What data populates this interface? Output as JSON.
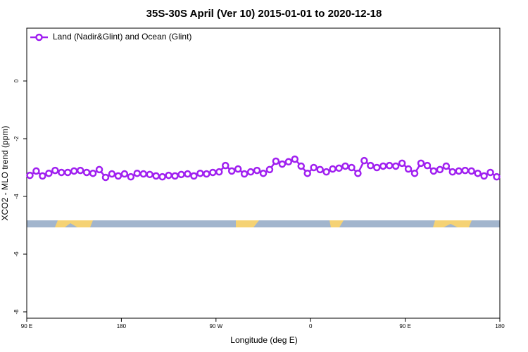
{
  "chart_data": {
    "type": "line",
    "title": "35S-30S April (Ver 10)   2015-01-01 to 2020-12-18",
    "x_label": "Longitude (deg E)",
    "y_label": "XCO2 - MLO trend (ppm)",
    "legend_position": "upper left",
    "xlim": [
      90,
      540
    ],
    "xticks": [
      {
        "value": 90,
        "label": "90 E"
      },
      180,
      {
        "value": 270,
        "label": "90 W"
      },
      {
        "value": 360,
        "label": "0"
      },
      {
        "value": 450,
        "label": "90 E"
      },
      {
        "value": 540,
        "label": "180"
      }
    ],
    "ylim": [
      -8.22,
      1.83
    ],
    "yticks": [
      0,
      -2,
      -4,
      -6,
      -8
    ],
    "series": [
      {
        "name": "Land (Nadir&Glint) and Ocean (Glint)",
        "color": "#a020f0",
        "x": [
          93,
          99,
          105,
          111,
          117,
          123,
          129,
          135,
          141,
          147,
          153,
          159,
          165,
          171,
          177,
          183,
          189,
          195,
          201,
          207,
          213,
          219,
          225,
          231,
          237,
          243,
          249,
          255,
          261,
          267,
          273,
          279,
          285,
          291,
          297,
          303,
          309,
          315,
          321,
          327,
          333,
          339,
          345,
          351,
          357,
          363,
          369,
          375,
          381,
          387,
          393,
          399,
          405,
          411,
          417,
          423,
          429,
          435,
          441,
          447,
          453,
          459,
          465,
          471,
          477,
          483,
          489,
          495,
          501,
          507,
          513,
          519,
          525,
          531,
          537
        ],
        "values": [
          -3.27,
          -3.12,
          -3.29,
          -3.2,
          -3.1,
          -3.17,
          -3.17,
          -3.12,
          -3.1,
          -3.17,
          -3.2,
          -3.07,
          -3.34,
          -3.22,
          -3.29,
          -3.22,
          -3.32,
          -3.2,
          -3.22,
          -3.24,
          -3.29,
          -3.32,
          -3.27,
          -3.29,
          -3.24,
          -3.22,
          -3.29,
          -3.2,
          -3.22,
          -3.17,
          -3.15,
          -2.93,
          -3.12,
          -3.05,
          -3.22,
          -3.15,
          -3.1,
          -3.2,
          -3.07,
          -2.78,
          -2.88,
          -2.8,
          -2.71,
          -2.95,
          -3.2,
          -3.0,
          -3.07,
          -3.15,
          -3.05,
          -3.02,
          -2.95,
          -3.0,
          -3.2,
          -2.76,
          -2.93,
          -3.0,
          -2.95,
          -2.93,
          -2.95,
          -2.85,
          -3.05,
          -3.2,
          -2.85,
          -2.93,
          -3.12,
          -3.07,
          -2.95,
          -3.15,
          -3.12,
          -3.1,
          -3.12,
          -3.2,
          -3.29,
          -3.17,
          -3.32
        ]
      }
    ]
  }
}
